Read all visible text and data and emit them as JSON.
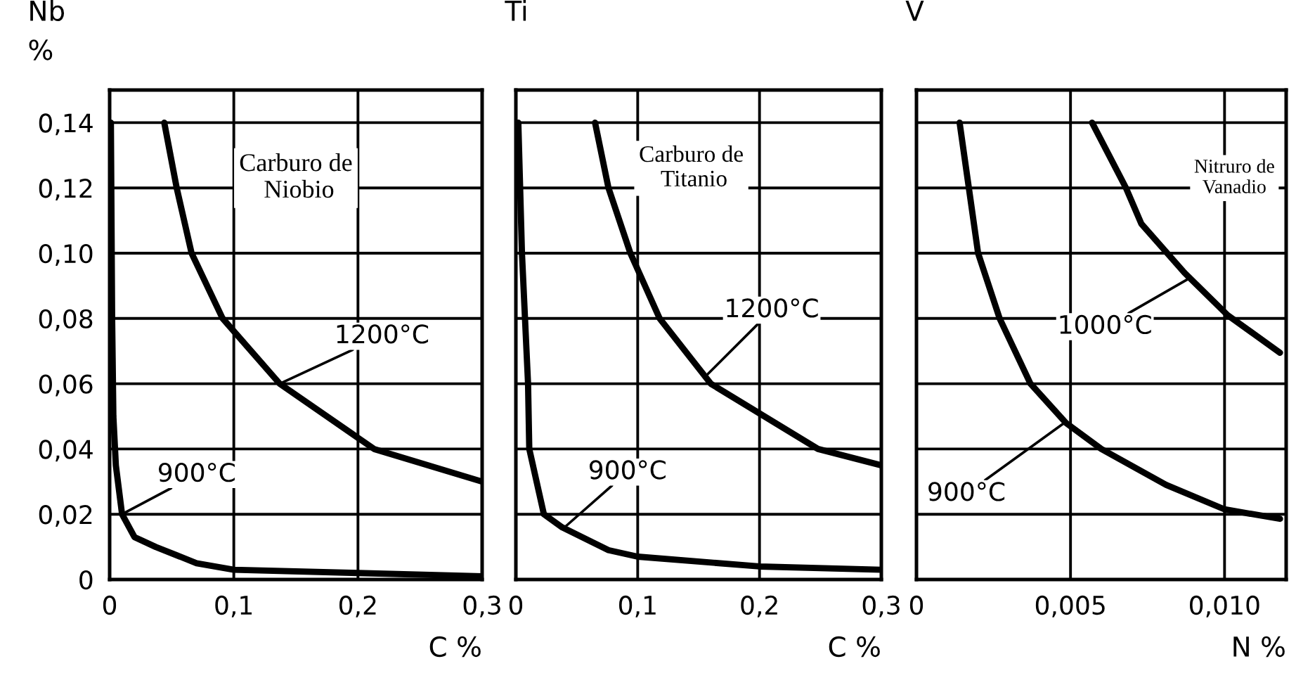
{
  "chart_data": [
    {
      "type": "line",
      "title": "Nb",
      "ylabel": "%",
      "xlabel": "C %",
      "xlim": [
        0,
        0.3
      ],
      "ylim": [
        0,
        0.15
      ],
      "xticks": [
        {
          "value": 0,
          "label": "0"
        },
        {
          "value": 0.1,
          "label": "0,1"
        },
        {
          "value": 0.2,
          "label": "0,2"
        },
        {
          "value": 0.3,
          "label": "0,3"
        }
      ],
      "yticks": [
        {
          "value": 0,
          "label": "0"
        },
        {
          "value": 0.02,
          "label": "0,02"
        },
        {
          "value": 0.04,
          "label": "0,04"
        },
        {
          "value": 0.06,
          "label": "0,06"
        },
        {
          "value": 0.08,
          "label": "0,08"
        },
        {
          "value": 0.1,
          "label": "0,10"
        },
        {
          "value": 0.12,
          "label": "0,12"
        },
        {
          "value": 0.14,
          "label": "0,14"
        }
      ],
      "grid": true,
      "series": [
        {
          "color": "#000000",
          "x": [
            0.044,
            0.054,
            0.066,
            0.091,
            0.137,
            0.213,
            0.3
          ],
          "values": [
            0.14,
            0.12,
            0.1,
            0.08,
            0.06,
            0.04,
            0.03
          ]
        },
        {
          "color": "#000000",
          "x": [
            0.001,
            0.002,
            0.003,
            0.005,
            0.01,
            0.02,
            0.037,
            0.07,
            0.1,
            0.2,
            0.3
          ],
          "values": [
            0.14,
            0.08,
            0.05,
            0.035,
            0.02,
            0.013,
            0.01,
            0.005,
            0.003,
            0.002,
            0.001
          ]
        }
      ],
      "annotations": [
        "Carburo de\n Niobio",
        {
          "text": "1200°C",
          "x": 0.137,
          "y": 0.06
        },
        {
          "text": "900°C",
          "x": 0.01,
          "y": 0.02
        }
      ]
    },
    {
      "type": "line",
      "title": "Ti",
      "xlabel": "C %",
      "tick_labels": "x",
      "xlim": [
        0,
        0.3
      ],
      "ylim": [
        0,
        0.15
      ],
      "xticks": [
        {
          "value": 0,
          "label": "0"
        },
        {
          "value": 0.1,
          "label": "0,1"
        },
        {
          "value": 0.2,
          "label": "0,2"
        },
        {
          "value": 0.3,
          "label": "0,3"
        }
      ],
      "yticks": [
        0,
        0.02,
        0.04,
        0.06,
        0.08,
        0.1,
        0.12,
        0.14
      ],
      "grid": true,
      "series": [
        {
          "color": "#000000",
          "x": [
            0.065,
            0.076,
            0.094,
            0.118,
            0.16,
            0.248,
            0.3
          ],
          "values": [
            0.14,
            0.12,
            0.1,
            0.08,
            0.06,
            0.04,
            0.035
          ]
        },
        {
          "color": "#000000",
          "x": [
            0.002,
            0.005,
            0.01,
            0.011,
            0.023,
            0.038,
            0.076,
            0.1,
            0.2,
            0.3
          ],
          "values": [
            0.14,
            0.1,
            0.06,
            0.04,
            0.02,
            0.016,
            0.009,
            0.007,
            0.004,
            0.003
          ]
        }
      ],
      "annotations": [
        "Carburo de\n Titanio",
        {
          "text": "1200°C",
          "x": 0.155,
          "y": 0.062
        },
        {
          "text": "900°C",
          "x": 0.04,
          "y": 0.016
        }
      ]
    },
    {
      "type": "line",
      "title": "V",
      "xlabel": "N %",
      "tick_labels": "x",
      "xlim": [
        0,
        0.012
      ],
      "ylim": [
        0,
        0.15
      ],
      "xticks": [
        {
          "value": 0,
          "label": "0"
        },
        {
          "value": 0.005,
          "label": "0,005"
        },
        {
          "value": 0.01,
          "label": "0,010"
        }
      ],
      "yticks": [
        0,
        0.02,
        0.04,
        0.06,
        0.08,
        0.1,
        0.12,
        0.14
      ],
      "grid": true,
      "series": [
        {
          "color": "#000000",
          "x": [
            0.0014,
            0.0017,
            0.002,
            0.0027,
            0.0037,
            0.00485,
            0.006,
            0.0081,
            0.01,
            0.0118
          ],
          "values": [
            0.14,
            0.12,
            0.1,
            0.08,
            0.06,
            0.048,
            0.04,
            0.029,
            0.0215,
            0.0186
          ]
        },
        {
          "color": "#000000",
          "x": [
            0.0057,
            0.0068,
            0.0073,
            0.0087,
            0.0101,
            0.0118
          ],
          "values": [
            0.14,
            0.12,
            0.109,
            0.094,
            0.081,
            0.0695
          ]
        }
      ],
      "annotations": [
        "Nitruro de\nVanadio",
        {
          "text": "1000°C",
          "x": 0.0088,
          "y": 0.092
        },
        {
          "text": "900°C",
          "x": 0.0048,
          "y": 0.048
        }
      ]
    }
  ]
}
